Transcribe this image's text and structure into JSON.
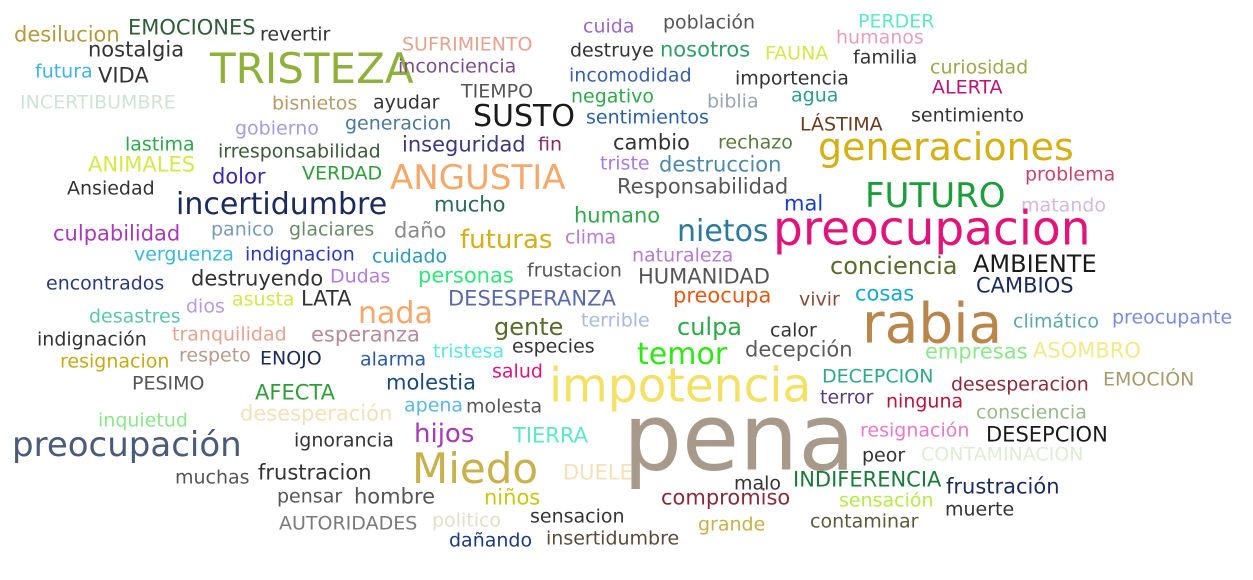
{
  "words": [
    {
      "text": "desilucion",
      "color": "#b59a3a"
    },
    {
      "text": "EMOCIONES",
      "color": "#2f5d3a"
    },
    {
      "text": "revertir",
      "color": "#333333"
    },
    {
      "text": "nostalgia",
      "color": "#333333"
    },
    {
      "text": "TRISTEZA",
      "color": "#8fb03a"
    },
    {
      "text": "futura",
      "color": "#3fb3e6"
    },
    {
      "text": "VIDA",
      "color": "#333333"
    },
    {
      "text": "INCERTIBUMBRE",
      "color": "#cfe3d9"
    },
    {
      "text": "SUFRIMIENTO",
      "color": "#e5a38f"
    },
    {
      "text": "inconciencia",
      "color": "#7a4d8c"
    },
    {
      "text": "bisnietos",
      "color": "#b89a6a"
    },
    {
      "text": "ayudar",
      "color": "#333333"
    },
    {
      "text": "TIEMPO",
      "color": "#555555"
    },
    {
      "text": "cuida",
      "color": "#9a66cc"
    },
    {
      "text": "destruye",
      "color": "#333333"
    },
    {
      "text": "población",
      "color": "#555555"
    },
    {
      "text": "nosotros",
      "color": "#2f9e6a"
    },
    {
      "text": "FAUNA",
      "color": "#d4e84a"
    },
    {
      "text": "incomodidad",
      "color": "#3a5fa8"
    },
    {
      "text": "negativo",
      "color": "#2ea84a"
    },
    {
      "text": "biblia",
      "color": "#9aa5b1"
    },
    {
      "text": "importencia",
      "color": "#333333"
    },
    {
      "text": "agua",
      "color": "#2a9e8a"
    },
    {
      "text": "PERDER",
      "color": "#5ee8c8"
    },
    {
      "text": "humanos",
      "color": "#e8a0b8"
    },
    {
      "text": "familia",
      "color": "#333333"
    },
    {
      "text": "curiosidad",
      "color": "#9ea84a"
    },
    {
      "text": "ALERTA",
      "color": "#b8147a"
    },
    {
      "text": "SUSTO",
      "color": "#1a1a1a"
    },
    {
      "text": "generacion",
      "color": "#4a7a9a"
    },
    {
      "text": "sentimientos",
      "color": "#2a5fa8"
    },
    {
      "text": "gobierno",
      "color": "#a89ae0"
    },
    {
      "text": "LÁSTIMA",
      "color": "#6a3a1a"
    },
    {
      "text": "sentimiento",
      "color": "#333333"
    },
    {
      "text": "lastima",
      "color": "#2ea84a"
    },
    {
      "text": "cambio",
      "color": "#333333"
    },
    {
      "text": "rechazo",
      "color": "#5a7a3a"
    },
    {
      "text": "generaciones",
      "color": "#d4b014"
    },
    {
      "text": "irresponsabilidad",
      "color": "#3a5a3a"
    },
    {
      "text": "inseguridad",
      "color": "#3a3a7a"
    },
    {
      "text": "fin",
      "color": "#8a2a6a"
    },
    {
      "text": "ANIMALES",
      "color": "#d4e84a"
    },
    {
      "text": "triste",
      "color": "#a87ae0"
    },
    {
      "text": "destruccion",
      "color": "#4a8aa8"
    },
    {
      "text": "dolor",
      "color": "#3a2aa8"
    },
    {
      "text": "VERDAD",
      "color": "#2e9e3a"
    },
    {
      "text": "ANGUSTIA",
      "color": "#f5a86a"
    },
    {
      "text": "Ansiedad",
      "color": "#333333"
    },
    {
      "text": "Responsabilidad",
      "color": "#555555"
    },
    {
      "text": "FUTURO",
      "color": "#1a9e3a"
    },
    {
      "text": "problema",
      "color": "#c8446a"
    },
    {
      "text": "incertidumbre",
      "color": "#1a2a5a"
    },
    {
      "text": "mucho",
      "color": "#2a6a5a"
    },
    {
      "text": "mal",
      "color": "#1a3ac8"
    },
    {
      "text": "matando",
      "color": "#d4b8e0"
    },
    {
      "text": "humano",
      "color": "#2ea84a"
    },
    {
      "text": "culpabilidad",
      "color": "#a83ab8"
    },
    {
      "text": "panico",
      "color": "#7a9ab8"
    },
    {
      "text": "glaciares",
      "color": "#6a8a6a"
    },
    {
      "text": "daño",
      "color": "#8a8a8a"
    },
    {
      "text": "futuras",
      "color": "#d4b014"
    },
    {
      "text": "clima",
      "color": "#b87ad4"
    },
    {
      "text": "nietos",
      "color": "#2a7a9a"
    },
    {
      "text": "preocupacion",
      "color": "#e0147a"
    },
    {
      "text": "verguenza",
      "color": "#3ab8e0"
    },
    {
      "text": "indignacion",
      "color": "#2a3ab8"
    },
    {
      "text": "cuidado",
      "color": "#2a9ab8"
    },
    {
      "text": "naturaleza",
      "color": "#b87ad4"
    },
    {
      "text": "encontrados",
      "color": "#2a3a7a"
    },
    {
      "text": "destruyendo",
      "color": "#333333"
    },
    {
      "text": "Dudas",
      "color": "#b87ae0"
    },
    {
      "text": "personas",
      "color": "#2ee87a"
    },
    {
      "text": "frustacion",
      "color": "#555555"
    },
    {
      "text": "HUMANIDAD",
      "color": "#555555"
    },
    {
      "text": "conciencia",
      "color": "#5a6a2a"
    },
    {
      "text": "AMBIENTE",
      "color": "#1a1a1a"
    },
    {
      "text": "dios",
      "color": "#b89ae0"
    },
    {
      "text": "asusta",
      "color": "#d4e84a"
    },
    {
      "text": "LATA",
      "color": "#333333"
    },
    {
      "text": "nada",
      "color": "#f5a86a"
    },
    {
      "text": "DESESPERANZA",
      "color": "#5a6aa8"
    },
    {
      "text": "preocupa",
      "color": "#e05a14"
    },
    {
      "text": "vivir",
      "color": "#8a4a3a"
    },
    {
      "text": "cosas",
      "color": "#14a8c8"
    },
    {
      "text": "CAMBIOS",
      "color": "#1a2a5a"
    },
    {
      "text": "desastres",
      "color": "#5ac8a8"
    },
    {
      "text": "rabia",
      "color": "#b8864a"
    },
    {
      "text": "gente",
      "color": "#5a6a2a"
    },
    {
      "text": "terrible",
      "color": "#a8b8e0"
    },
    {
      "text": "culpa",
      "color": "#2ea84a"
    },
    {
      "text": "calor",
      "color": "#333333"
    },
    {
      "text": "climático",
      "color": "#5aa8a8"
    },
    {
      "text": "preocupante",
      "color": "#7a8ae0"
    },
    {
      "text": "indignación",
      "color": "#333333"
    },
    {
      "text": "tranquilidad",
      "color": "#e5a38f"
    },
    {
      "text": "esperanza",
      "color": "#b88a9a"
    },
    {
      "text": "tristesa",
      "color": "#5ae8e0"
    },
    {
      "text": "especies",
      "color": "#333333"
    },
    {
      "text": "temor",
      "color": "#2ee814"
    },
    {
      "text": "decepción",
      "color": "#5a5a5a"
    },
    {
      "text": "empresas",
      "color": "#8ae88a"
    },
    {
      "text": "ASOMBRO",
      "color": "#f5e88a"
    },
    {
      "text": "resignacion",
      "color": "#c8a814"
    },
    {
      "text": "respeto",
      "color": "#b89a8a"
    },
    {
      "text": "ENOJO",
      "color": "#1a2a5a"
    },
    {
      "text": "alarma",
      "color": "#2a5aa8"
    },
    {
      "text": "salud",
      "color": "#e0147a"
    },
    {
      "text": "impotencia",
      "color": "#f5e066"
    },
    {
      "text": "DECEPCION",
      "color": "#2ea88a"
    },
    {
      "text": "EMOCIÓN",
      "color": "#a89a6a"
    },
    {
      "text": "PESIMO",
      "color": "#555555"
    },
    {
      "text": "AFECTA",
      "color": "#2e9e3a"
    },
    {
      "text": "molestia",
      "color": "#1a4a7a"
    },
    {
      "text": "desesperacion",
      "color": "#8a2a3a"
    },
    {
      "text": "apena",
      "color": "#5ab8e0"
    },
    {
      "text": "molesta",
      "color": "#555555"
    },
    {
      "text": "terror",
      "color": "#5a3a7a"
    },
    {
      "text": "ninguna",
      "color": "#b8143a"
    },
    {
      "text": "inquietud",
      "color": "#8ae88a"
    },
    {
      "text": "desesperación",
      "color": "#f5e0b8"
    },
    {
      "text": "pena",
      "color": "#a89a8a"
    },
    {
      "text": "consciencia",
      "color": "#9ab88a"
    },
    {
      "text": "preocupación",
      "color": "#4a5a7a"
    },
    {
      "text": "ignorancia",
      "color": "#333333"
    },
    {
      "text": "hijos",
      "color": "#a83ab8"
    },
    {
      "text": "TIERRA",
      "color": "#5ae8c8"
    },
    {
      "text": "resignación",
      "color": "#e87ac8"
    },
    {
      "text": "DESEPCION",
      "color": "#1a1a1a"
    },
    {
      "text": "Miedo",
      "color": "#c8b04a"
    },
    {
      "text": "peor",
      "color": "#333333"
    },
    {
      "text": "CONTAMINACION",
      "color": "#e0ecd4"
    },
    {
      "text": "muchas",
      "color": "#555555"
    },
    {
      "text": "frustracion",
      "color": "#333333"
    },
    {
      "text": "DUELE",
      "color": "#f5e0b8"
    },
    {
      "text": "malo",
      "color": "#333333"
    },
    {
      "text": "INDIFERENCIA",
      "color": "#1a7a3a"
    },
    {
      "text": "frustración",
      "color": "#1a2a5a"
    },
    {
      "text": "pensar",
      "color": "#555555"
    },
    {
      "text": "hombre",
      "color": "#555555"
    },
    {
      "text": "niños",
      "color": "#c8c814"
    },
    {
      "text": "compromiso",
      "color": "#8a2a3a"
    },
    {
      "text": "sensación",
      "color": "#b8e84a"
    },
    {
      "text": "muerte",
      "color": "#333333"
    },
    {
      "text": "AUTORIDADES",
      "color": "#7a7a7a"
    },
    {
      "text": "politico",
      "color": "#e0e0c8"
    },
    {
      "text": "sensacion",
      "color": "#333333"
    },
    {
      "text": "grande",
      "color": "#c8b04a"
    },
    {
      "text": "contaminar",
      "color": "#5a5a3a"
    },
    {
      "text": "dañando",
      "color": "#1a3a7a"
    },
    {
      "text": "insertidumbre",
      "color": "#5a4a3a"
    }
  ]
}
